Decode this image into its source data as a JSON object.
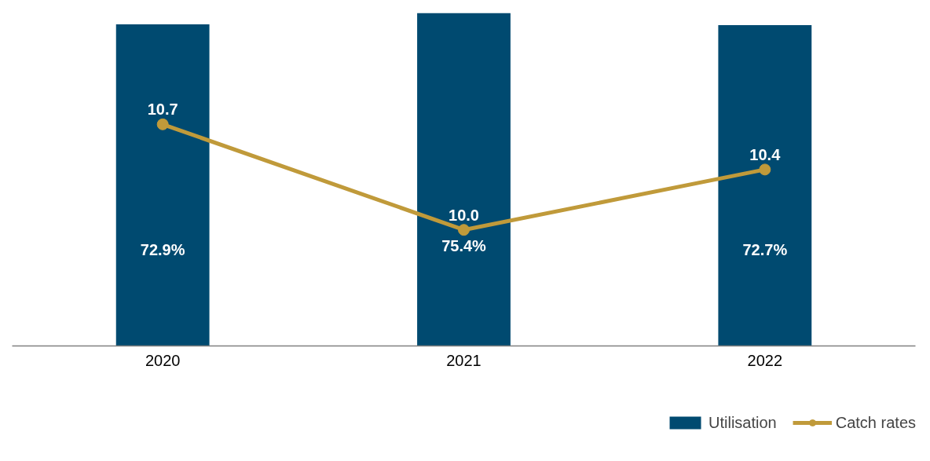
{
  "chart_data": {
    "type": "bar",
    "categories": [
      "2020",
      "2021",
      "2022"
    ],
    "series": [
      {
        "name": "Utilisation",
        "color": "#004a70",
        "values": [
          72.9,
          75.4,
          72.7
        ],
        "value_labels": [
          "72.9%",
          "75.4%",
          "72.7%"
        ]
      },
      {
        "name": "Catch rates",
        "type": "line",
        "axis": "y2",
        "color": "#c09a3a",
        "marker": "circle",
        "values": [
          10.7,
          10.0,
          10.4
        ],
        "value_labels": [
          "10.7",
          "10.0",
          "10.4"
        ]
      }
    ],
    "tick_labels": "x",
    "grid": false,
    "legend": "bottom"
  }
}
